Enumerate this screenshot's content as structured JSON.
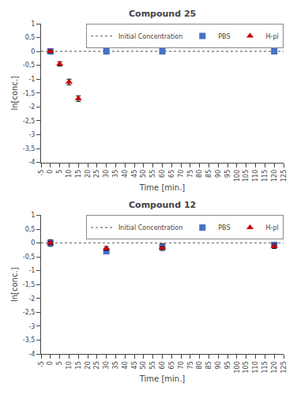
{
  "chart_data": [
    {
      "type": "scatter",
      "title": "Compound 25",
      "xlabel": "Time [min.]",
      "ylabel": "ln[conc.]",
      "xlim": [
        -5,
        125
      ],
      "xticks": [
        -5,
        0,
        5,
        10,
        15,
        20,
        25,
        30,
        35,
        40,
        45,
        50,
        55,
        60,
        65,
        70,
        75,
        80,
        85,
        90,
        95,
        100,
        105,
        110,
        115,
        120,
        125
      ],
      "ylim": [
        -4,
        1
      ],
      "yticks": [
        1,
        {
          "value": 0.5,
          "label": "0,5"
        },
        0,
        {
          "value": -0.5,
          "label": "-0,5"
        },
        -1,
        {
          "value": -1.5,
          "label": "-1,5"
        },
        -2,
        {
          "value": -2.5,
          "label": "-2,5"
        },
        -3,
        {
          "value": -3.5,
          "label": "-3,5"
        },
        -4
      ],
      "grid": false,
      "legend": "upper right",
      "series": [
        {
          "name": "Initial Concentration",
          "type": "line",
          "line_style": "dotted",
          "color": "#888888",
          "x": [
            -5,
            125
          ],
          "values": [
            0,
            0
          ]
        },
        {
          "name": "PBS",
          "type": "scatter",
          "marker": "square",
          "color": "#4472C4",
          "x": [
            0,
            30,
            60,
            120
          ],
          "values": [
            0.0,
            0.0,
            0.0,
            0.0
          ],
          "errors": [
            0.05,
            0.03,
            0.03,
            0.03
          ]
        },
        {
          "name": "H-pl",
          "type": "scatter",
          "marker": "triangle",
          "color": "#CC0000",
          "x": [
            0,
            5,
            10,
            15
          ],
          "values": [
            0.0,
            -0.45,
            -1.1,
            -1.7
          ],
          "errors": [
            0.05,
            0.08,
            0.1,
            0.1
          ]
        }
      ]
    },
    {
      "type": "scatter",
      "title": "Compound 12",
      "xlabel": "Time [min.]",
      "ylabel": "ln[conc.]",
      "xlim": [
        -5,
        125
      ],
      "xticks": [
        -5,
        0,
        5,
        10,
        15,
        20,
        25,
        30,
        35,
        40,
        45,
        50,
        55,
        60,
        65,
        70,
        75,
        80,
        85,
        90,
        95,
        100,
        105,
        110,
        115,
        120,
        125
      ],
      "ylim": [
        -4,
        1
      ],
      "yticks": [
        1,
        {
          "value": 0.5,
          "label": "0,5"
        },
        0,
        {
          "value": -0.5,
          "label": "-0,5"
        },
        -1,
        {
          "value": -1.5,
          "label": "-1,5"
        },
        -2,
        {
          "value": -2.5,
          "label": "-2,5"
        },
        -3,
        {
          "value": -3.5,
          "label": "-3,5"
        },
        -4
      ],
      "grid": false,
      "legend": "upper right",
      "series": [
        {
          "name": "Initial Concentration",
          "type": "line",
          "line_style": "dotted",
          "color": "#888888",
          "x": [
            -5,
            125
          ],
          "values": [
            0,
            0
          ]
        },
        {
          "name": "PBS",
          "type": "scatter",
          "marker": "square",
          "color": "#4472C4",
          "x": [
            0,
            30,
            60,
            120
          ],
          "values": [
            0.0,
            -0.3,
            -0.15,
            -0.07
          ],
          "errors": [
            0.12,
            0.08,
            0.12,
            0.05
          ]
        },
        {
          "name": "H-pl",
          "type": "scatter",
          "marker": "triangle",
          "color": "#CC0000",
          "x": [
            0,
            30,
            60,
            120
          ],
          "values": [
            0.0,
            -0.2,
            -0.18,
            -0.12
          ],
          "errors": [
            0.06,
            0.07,
            0.05,
            0.08
          ]
        }
      ]
    }
  ]
}
